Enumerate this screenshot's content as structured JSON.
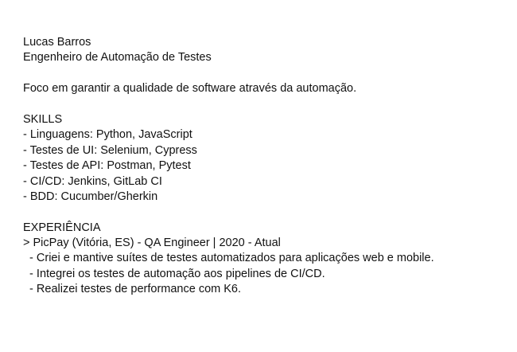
{
  "resume": {
    "name": "Lucas Barros",
    "role": "Engenheiro de Automação de Testes",
    "summary": "Foco em garantir a qualidade de software através da automação.",
    "skills": {
      "heading": "SKILLS",
      "items": [
        "- Linguagens: Python, JavaScript",
        "- Testes de UI: Selenium, Cypress",
        "- Testes de API: Postman, Pytest",
        "- CI/CD: Jenkins, GitLab CI",
        "- BDD: Cucumber/Gherkin"
      ]
    },
    "experience": {
      "heading": "EXPERIÊNCIA",
      "job_title": "> PicPay (Vitória, ES) - QA Engineer | 2020 - Atual",
      "bullets": [
        "  - Criei e mantive suítes de testes automatizados para aplicações web e mobile.",
        "  - Integrei os testes de automação aos pipelines de CI/CD.",
        "  - Realizei testes de performance com K6."
      ]
    }
  }
}
